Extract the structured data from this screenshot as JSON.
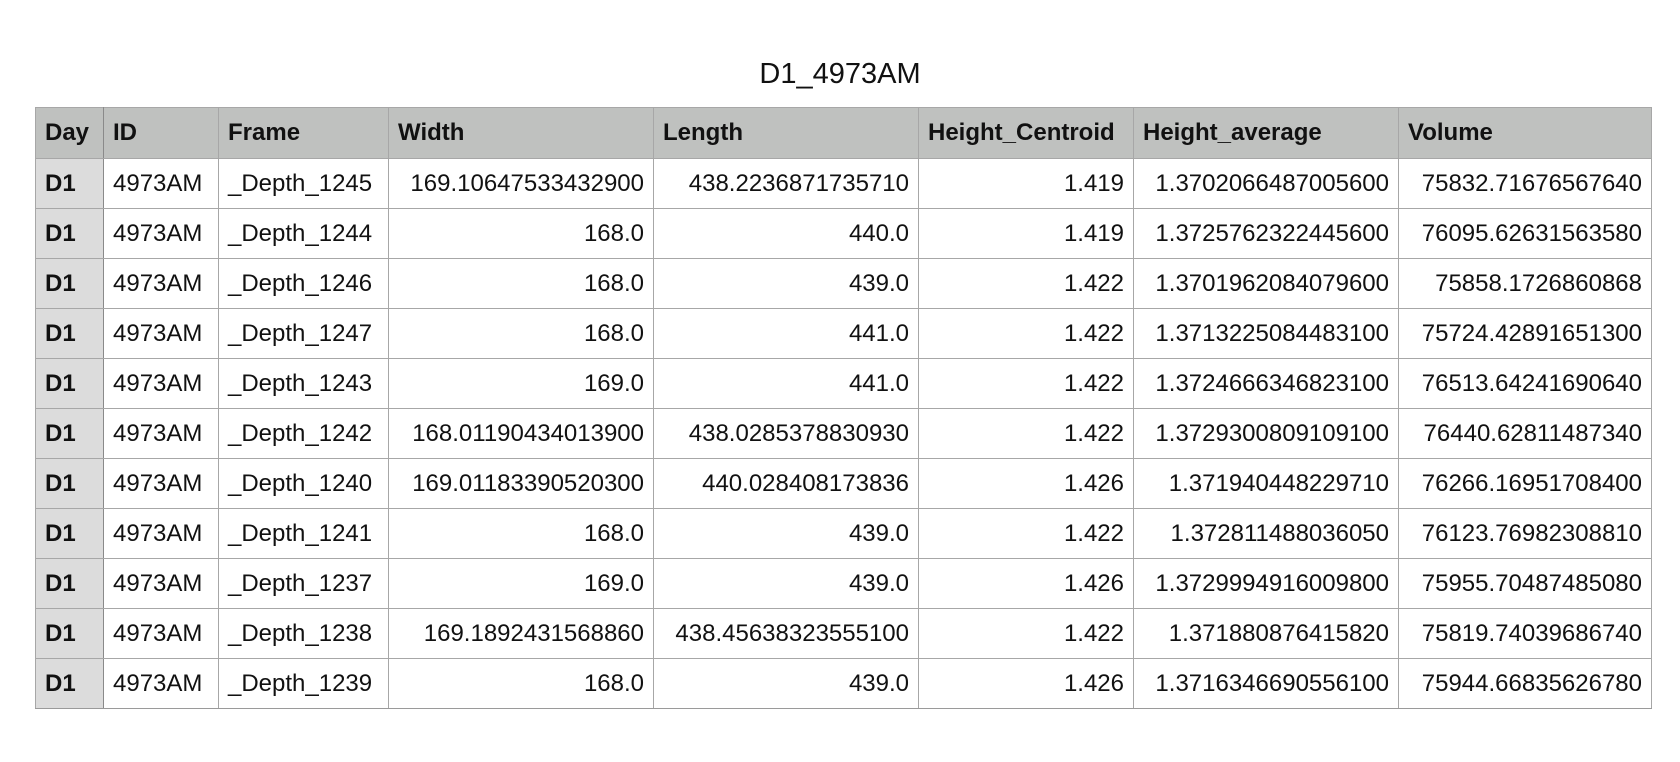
{
  "title": "D1_4973AM",
  "table": {
    "columns": [
      "Day",
      "ID",
      "Frame",
      "Width",
      "Length",
      "Height_Centroid",
      "Height_average",
      "Volume"
    ],
    "rows": [
      [
        "D1",
        "4973AM",
        "_Depth_1245",
        "169.10647533432900",
        "438.2236871735710",
        "1.419",
        "1.3702066487005600",
        "75832.71676567640"
      ],
      [
        "D1",
        "4973AM",
        "_Depth_1244",
        "168.0",
        "440.0",
        "1.419",
        "1.3725762322445600",
        "76095.62631563580"
      ],
      [
        "D1",
        "4973AM",
        "_Depth_1246",
        "168.0",
        "439.0",
        "1.422",
        "1.3701962084079600",
        "75858.1726860868"
      ],
      [
        "D1",
        "4973AM",
        "_Depth_1247",
        "168.0",
        "441.0",
        "1.422",
        "1.3713225084483100",
        "75724.42891651300"
      ],
      [
        "D1",
        "4973AM",
        "_Depth_1243",
        "169.0",
        "441.0",
        "1.422",
        "1.3724666346823100",
        "76513.64241690640"
      ],
      [
        "D1",
        "4973AM",
        "_Depth_1242",
        "168.01190434013900",
        "438.0285378830930",
        "1.422",
        "1.3729300809109100",
        "76440.62811487340"
      ],
      [
        "D1",
        "4973AM",
        "_Depth_1240",
        "169.01183390520300",
        "440.028408173836",
        "1.426",
        "1.371940448229710",
        "76266.16951708400"
      ],
      [
        "D1",
        "4973AM",
        "_Depth_1241",
        "168.0",
        "439.0",
        "1.422",
        "1.372811488036050",
        "76123.76982308810"
      ],
      [
        "D1",
        "4973AM",
        "_Depth_1237",
        "169.0",
        "439.0",
        "1.426",
        "1.3729994916009800",
        "75955.70487485080"
      ],
      [
        "D1",
        "4973AM",
        "_Depth_1238",
        "169.1892431568860",
        "438.45638323555100",
        "1.422",
        "1.371880876415820",
        "75819.74039686740"
      ],
      [
        "D1",
        "4973AM",
        "_Depth_1239",
        "168.0",
        "439.0",
        "1.426",
        "1.3716346690556100",
        "75944.66835626780"
      ]
    ]
  },
  "colors": {
    "header_bg": "#bfc1bf",
    "day_col_bg": "#dcdcdc",
    "grid_line": "#a7a7a7"
  }
}
